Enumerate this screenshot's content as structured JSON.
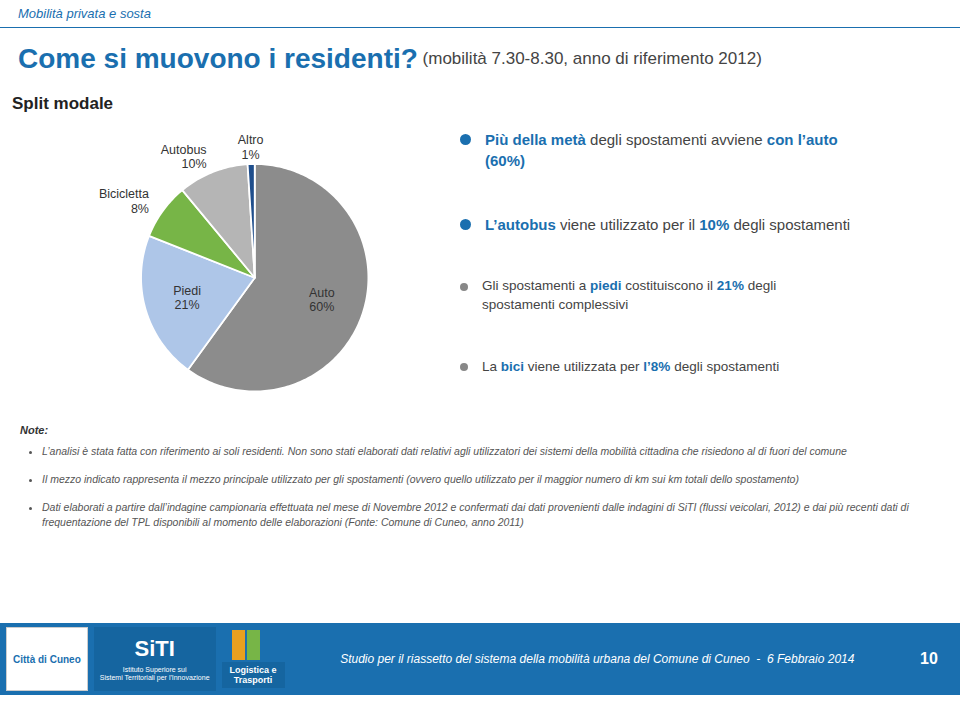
{
  "color": "#1a6faf",
  "background_color": "#ffffff",
  "header": "Mobilità privata e sosta",
  "title": "Come si muovono i residenti?",
  "subtitle": " (mobilità 7.30-8.30, anno di riferimento 2012)",
  "chart_data": {
    "type": "pie",
    "title": "Split modale",
    "categories": [
      "Auto",
      "Piedi",
      "Bicicletta",
      "Autobus",
      "Altro"
    ],
    "values": [
      60,
      21,
      8,
      10,
      1
    ],
    "value_labels": [
      "60%",
      "21%",
      "8%",
      "10%",
      "1%"
    ],
    "colors": [
      "#8c8c8c",
      "#aec6e8",
      "#77b547",
      "#b5b5b5",
      "#1f4e8c"
    ],
    "data_labels": true
  },
  "bullets": [
    {
      "color": "#1a6faf",
      "large": true,
      "parts": [
        {
          "text": "Più della metà",
          "bold": true,
          "color": "#1a6faf"
        },
        {
          "text": " degli spostamenti avviene ",
          "bold": false,
          "color": "#444444"
        },
        {
          "text": "con l’auto",
          "bold": true,
          "color": "#1a6faf"
        },
        {
          "text": "\n(60%)",
          "bold": true,
          "color": "#1a6faf"
        }
      ]
    },
    {
      "color": "#1a6faf",
      "large": true,
      "parts": [
        {
          "text": "L’autobus",
          "bold": true,
          "color": "#1a6faf"
        },
        {
          "text": " viene utilizzato per il ",
          "bold": false,
          "color": "#444444"
        },
        {
          "text": "10%",
          "bold": true,
          "color": "#1a6faf"
        },
        {
          "text": " degli spostamenti",
          "bold": false,
          "color": "#444444"
        }
      ]
    },
    {
      "color": "#888888",
      "large": false,
      "parts": [
        {
          "text": "Gli spostamenti a ",
          "bold": false,
          "color": "#444444"
        },
        {
          "text": "piedi",
          "bold": true,
          "color": "#1a6faf"
        },
        {
          "text": " costituiscono il ",
          "bold": false,
          "color": "#444444"
        },
        {
          "text": "21%",
          "bold": true,
          "color": "#1a6faf"
        },
        {
          "text": " degli\nspostamenti complessivi",
          "bold": false,
          "color": "#444444"
        }
      ]
    },
    {
      "color": "#888888",
      "large": false,
      "parts": [
        {
          "text": "La ",
          "bold": false,
          "color": "#444444"
        },
        {
          "text": "bici",
          "bold": true,
          "color": "#1a6faf"
        },
        {
          "text": " viene utilizzata per ",
          "bold": false,
          "color": "#444444"
        },
        {
          "text": "l’8%",
          "bold": true,
          "color": "#1a6faf"
        },
        {
          "text": " degli spostamenti",
          "bold": false,
          "color": "#444444"
        }
      ]
    }
  ],
  "notes": {
    "title": "Note:",
    "lines": [
      "L’analisi è stata fatta con riferimento ai soli residenti. Non sono stati elaborati dati relativi agli utilizzatori dei sistemi della mobilità cittadina  che risiedono al di fuori del comune",
      "Il mezzo indicato rappresenta il mezzo principale utilizzato per gli spostamenti (ovvero quello utilizzato per il maggior numero di km sui km totali dello spostamento)",
      "Dati elaborati a partire dall’indagine campionaria effettuata nel mese di Novembre 2012 e confermati dai dati provenienti dalle indagini di SiTI (flussi veicolari, 2012) e dai più recenti dati di frequentazione del TPL disponibili al momento delle elaborazioni (Fonte: Comune di Cuneo, anno 2011)"
    ]
  },
  "footer": {
    "text": "Studio per il riassetto del sistema della mobilità urbana del Comune di Cuneo  -  6 Febbraio 2014",
    "page": "10",
    "background": "#1a6faf",
    "logos": [
      {
        "text": "Città di Cuneo",
        "color": "#1a6faf",
        "background": "#ffffff"
      },
      {
        "text": "SiTI",
        "subtext": "Istituto Superiore sui\nSistemi Territoriali per l'Innovazione",
        "color": "#ffffff",
        "background": "#1565a0"
      },
      {
        "text": "Logistica e\nTrasporti",
        "color": "#ffffff",
        "background": "#1565a0",
        "stripes": [
          "#e8a020",
          "#77b547",
          "#1a6faf"
        ]
      }
    ]
  }
}
